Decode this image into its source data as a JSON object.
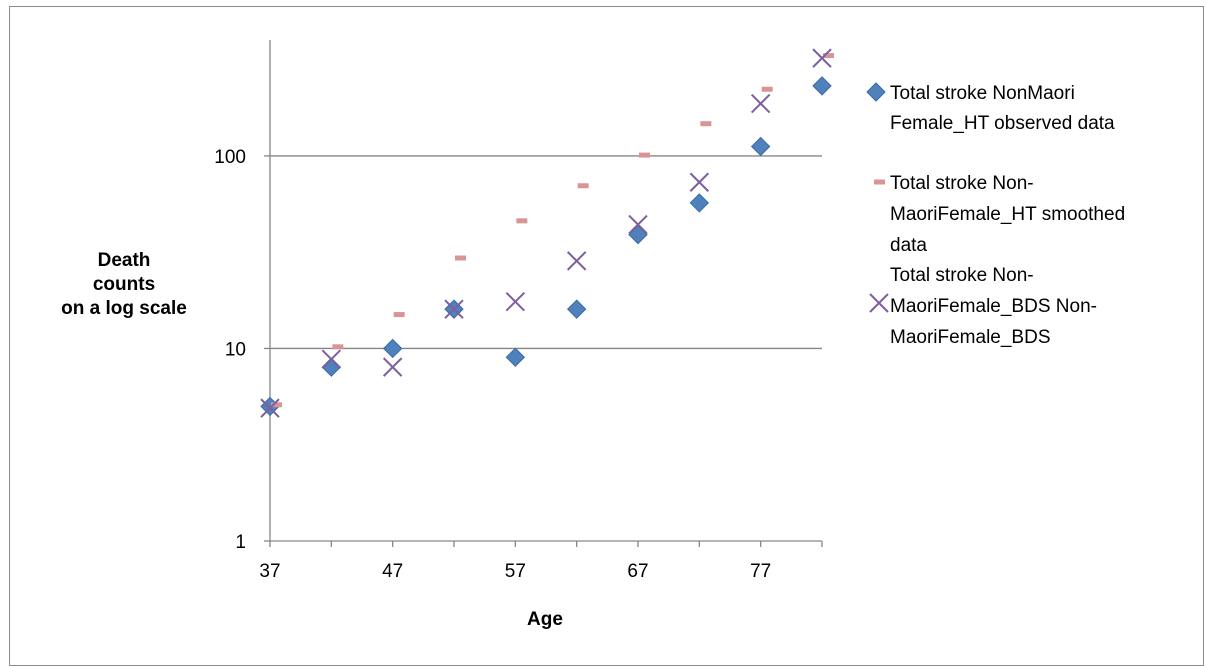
{
  "chart_data": {
    "type": "scatter",
    "xlabel": "Age",
    "ylabel_lines": [
      "Death",
      "counts",
      "on a log scale"
    ],
    "y_scale": "log",
    "xlim": [
      37,
      82
    ],
    "ylim": [
      1,
      400
    ],
    "x_ticks": [
      37,
      47,
      57,
      67,
      77
    ],
    "y_ticks": [
      1,
      10,
      100
    ],
    "grid": "horizontal",
    "legend_position": "right",
    "series": [
      {
        "name_lines": [
          "Total stroke NonMaori",
          "Female_HT observed data"
        ],
        "marker": "diamond",
        "color": "#4f81bd",
        "x": [
          37,
          42,
          47,
          52,
          57,
          62,
          67,
          72,
          77,
          82
        ],
        "y": [
          5,
          8,
          10,
          16,
          9,
          16,
          39,
          57,
          112,
          231
        ]
      },
      {
        "name_lines": [
          "Total stroke Non-",
          "MaoriFemale_HT smoothed",
          "data"
        ],
        "marker": "dash",
        "color": "#d99594",
        "x": [
          37,
          42,
          47,
          52,
          57,
          62,
          67,
          72,
          77,
          82
        ],
        "y": [
          5.1,
          10.2,
          15,
          29.5,
          46,
          70,
          101,
          147,
          222,
          332
        ]
      },
      {
        "name_lines": [
          "Total stroke Non-",
          "MaoriFemale_BDS Non-",
          "MaoriFemale_BDS"
        ],
        "marker": "x",
        "color": "#7d5f9e",
        "x": [
          37,
          42,
          47,
          52,
          57,
          62,
          67,
          72,
          77,
          82
        ],
        "y": [
          4.9,
          8.8,
          8,
          16,
          17.5,
          28.5,
          44,
          73,
          187,
          322
        ]
      }
    ]
  }
}
